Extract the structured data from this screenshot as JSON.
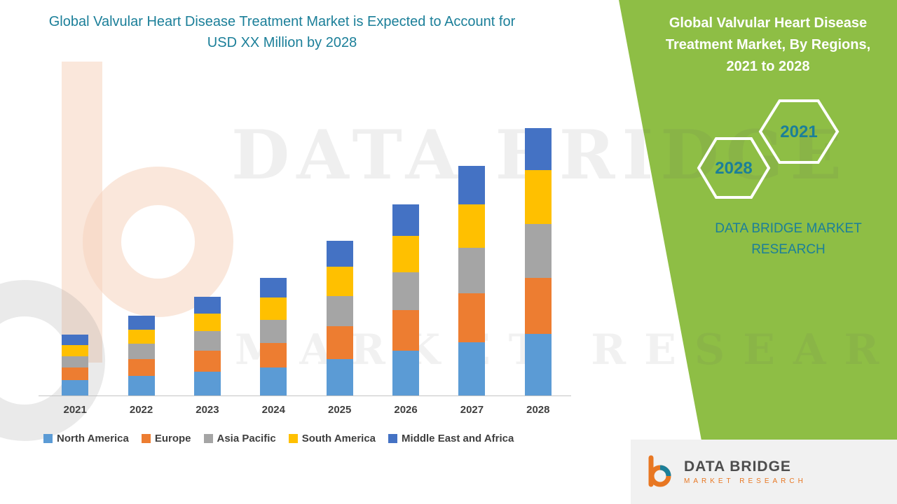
{
  "header": {
    "left_title": "Global Valvular Heart Disease Treatment Market is Expected to Account for USD XX Million by 2028",
    "right_title": "Global Valvular Heart Disease Treatment Market, By Regions, 2021 to 2028"
  },
  "green_panel": {
    "hex_back_label": "2028",
    "hex_front_label": "2021",
    "brand_caption": "DATA BRIDGE MARKET RESEARCH"
  },
  "watermark": {
    "line1": "DATA BRIDGE",
    "line2": "MARKET RESEARCH"
  },
  "footer_logo": {
    "title": "DATA BRIDGE",
    "subtitle": "MARKET RESEARCH"
  },
  "colors": {
    "accent_teal": "#1B7F99",
    "panel_green": "#8EBE45",
    "brand_orange": "#E87722"
  },
  "chart_data": {
    "type": "bar",
    "stacked": true,
    "title": "Global Valvular Heart Disease Treatment Market, By Regions, 2021 to 2028",
    "categories": [
      "2021",
      "2022",
      "2023",
      "2024",
      "2025",
      "2026",
      "2027",
      "2028"
    ],
    "series": [
      {
        "name": "North America",
        "color": "#5B9BD5",
        "values": [
          22,
          28,
          34,
          40,
          52,
          64,
          76,
          88
        ]
      },
      {
        "name": "Europe",
        "color": "#ED7D31",
        "values": [
          18,
          24,
          30,
          35,
          47,
          58,
          70,
          80
        ]
      },
      {
        "name": "Asia Pacific",
        "color": "#A5A5A5",
        "values": [
          16,
          22,
          28,
          33,
          43,
          54,
          65,
          77
        ]
      },
      {
        "name": "South America",
        "color": "#FFC000",
        "values": [
          16,
          20,
          25,
          32,
          42,
          52,
          62,
          77
        ]
      },
      {
        "name": "Middle East and Africa",
        "color": "#4472C4",
        "values": [
          15,
          20,
          24,
          28,
          37,
          45,
          55,
          60
        ]
      }
    ],
    "totals": [
      87,
      114,
      141,
      168,
      221,
      273,
      328,
      382
    ],
    "xlabel": "",
    "ylabel": "",
    "ylim": [
      0,
      400
    ],
    "y_axis_visible": false,
    "grid": false,
    "legend_position": "bottom"
  }
}
